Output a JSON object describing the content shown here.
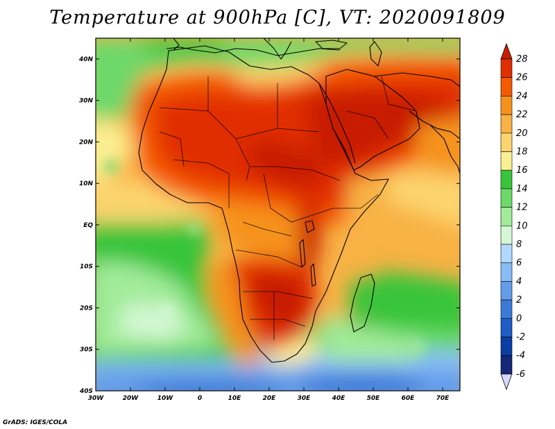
{
  "title": "Temperature at 900hPa [C], VT: 2020091809",
  "credit": "GrADS: IGES/COLA",
  "map": {
    "lon_range": [
      -30,
      75
    ],
    "lat_range": [
      -40,
      45
    ],
    "x_ticks": [
      "30W",
      "20W",
      "10W",
      "0",
      "10E",
      "20E",
      "30E",
      "40E",
      "50E",
      "60E",
      "70E"
    ],
    "y_ticks": [
      "40S",
      "30S",
      "20S",
      "10S",
      "EQ",
      "10N",
      "20N",
      "30N",
      "40N"
    ]
  },
  "colorbar": {
    "labels": [
      "28",
      "26",
      "24",
      "22",
      "20",
      "18",
      "16",
      "14",
      "12",
      "10",
      "8",
      "6",
      "4",
      "2",
      "0",
      "-2",
      "-4",
      "-6"
    ],
    "colors": [
      "#c81e00",
      "#e12f00",
      "#f45a00",
      "#f6921c",
      "#f8b245",
      "#fcd46e",
      "#fbef93",
      "#39c53a",
      "#6cd96a",
      "#a1eb9a",
      "#d4f8d4",
      "#b1d8ff",
      "#88bcf6",
      "#649cea",
      "#3b7ad8",
      "#1f5cc6",
      "#0a3ea2",
      "#142778"
    ]
  }
}
